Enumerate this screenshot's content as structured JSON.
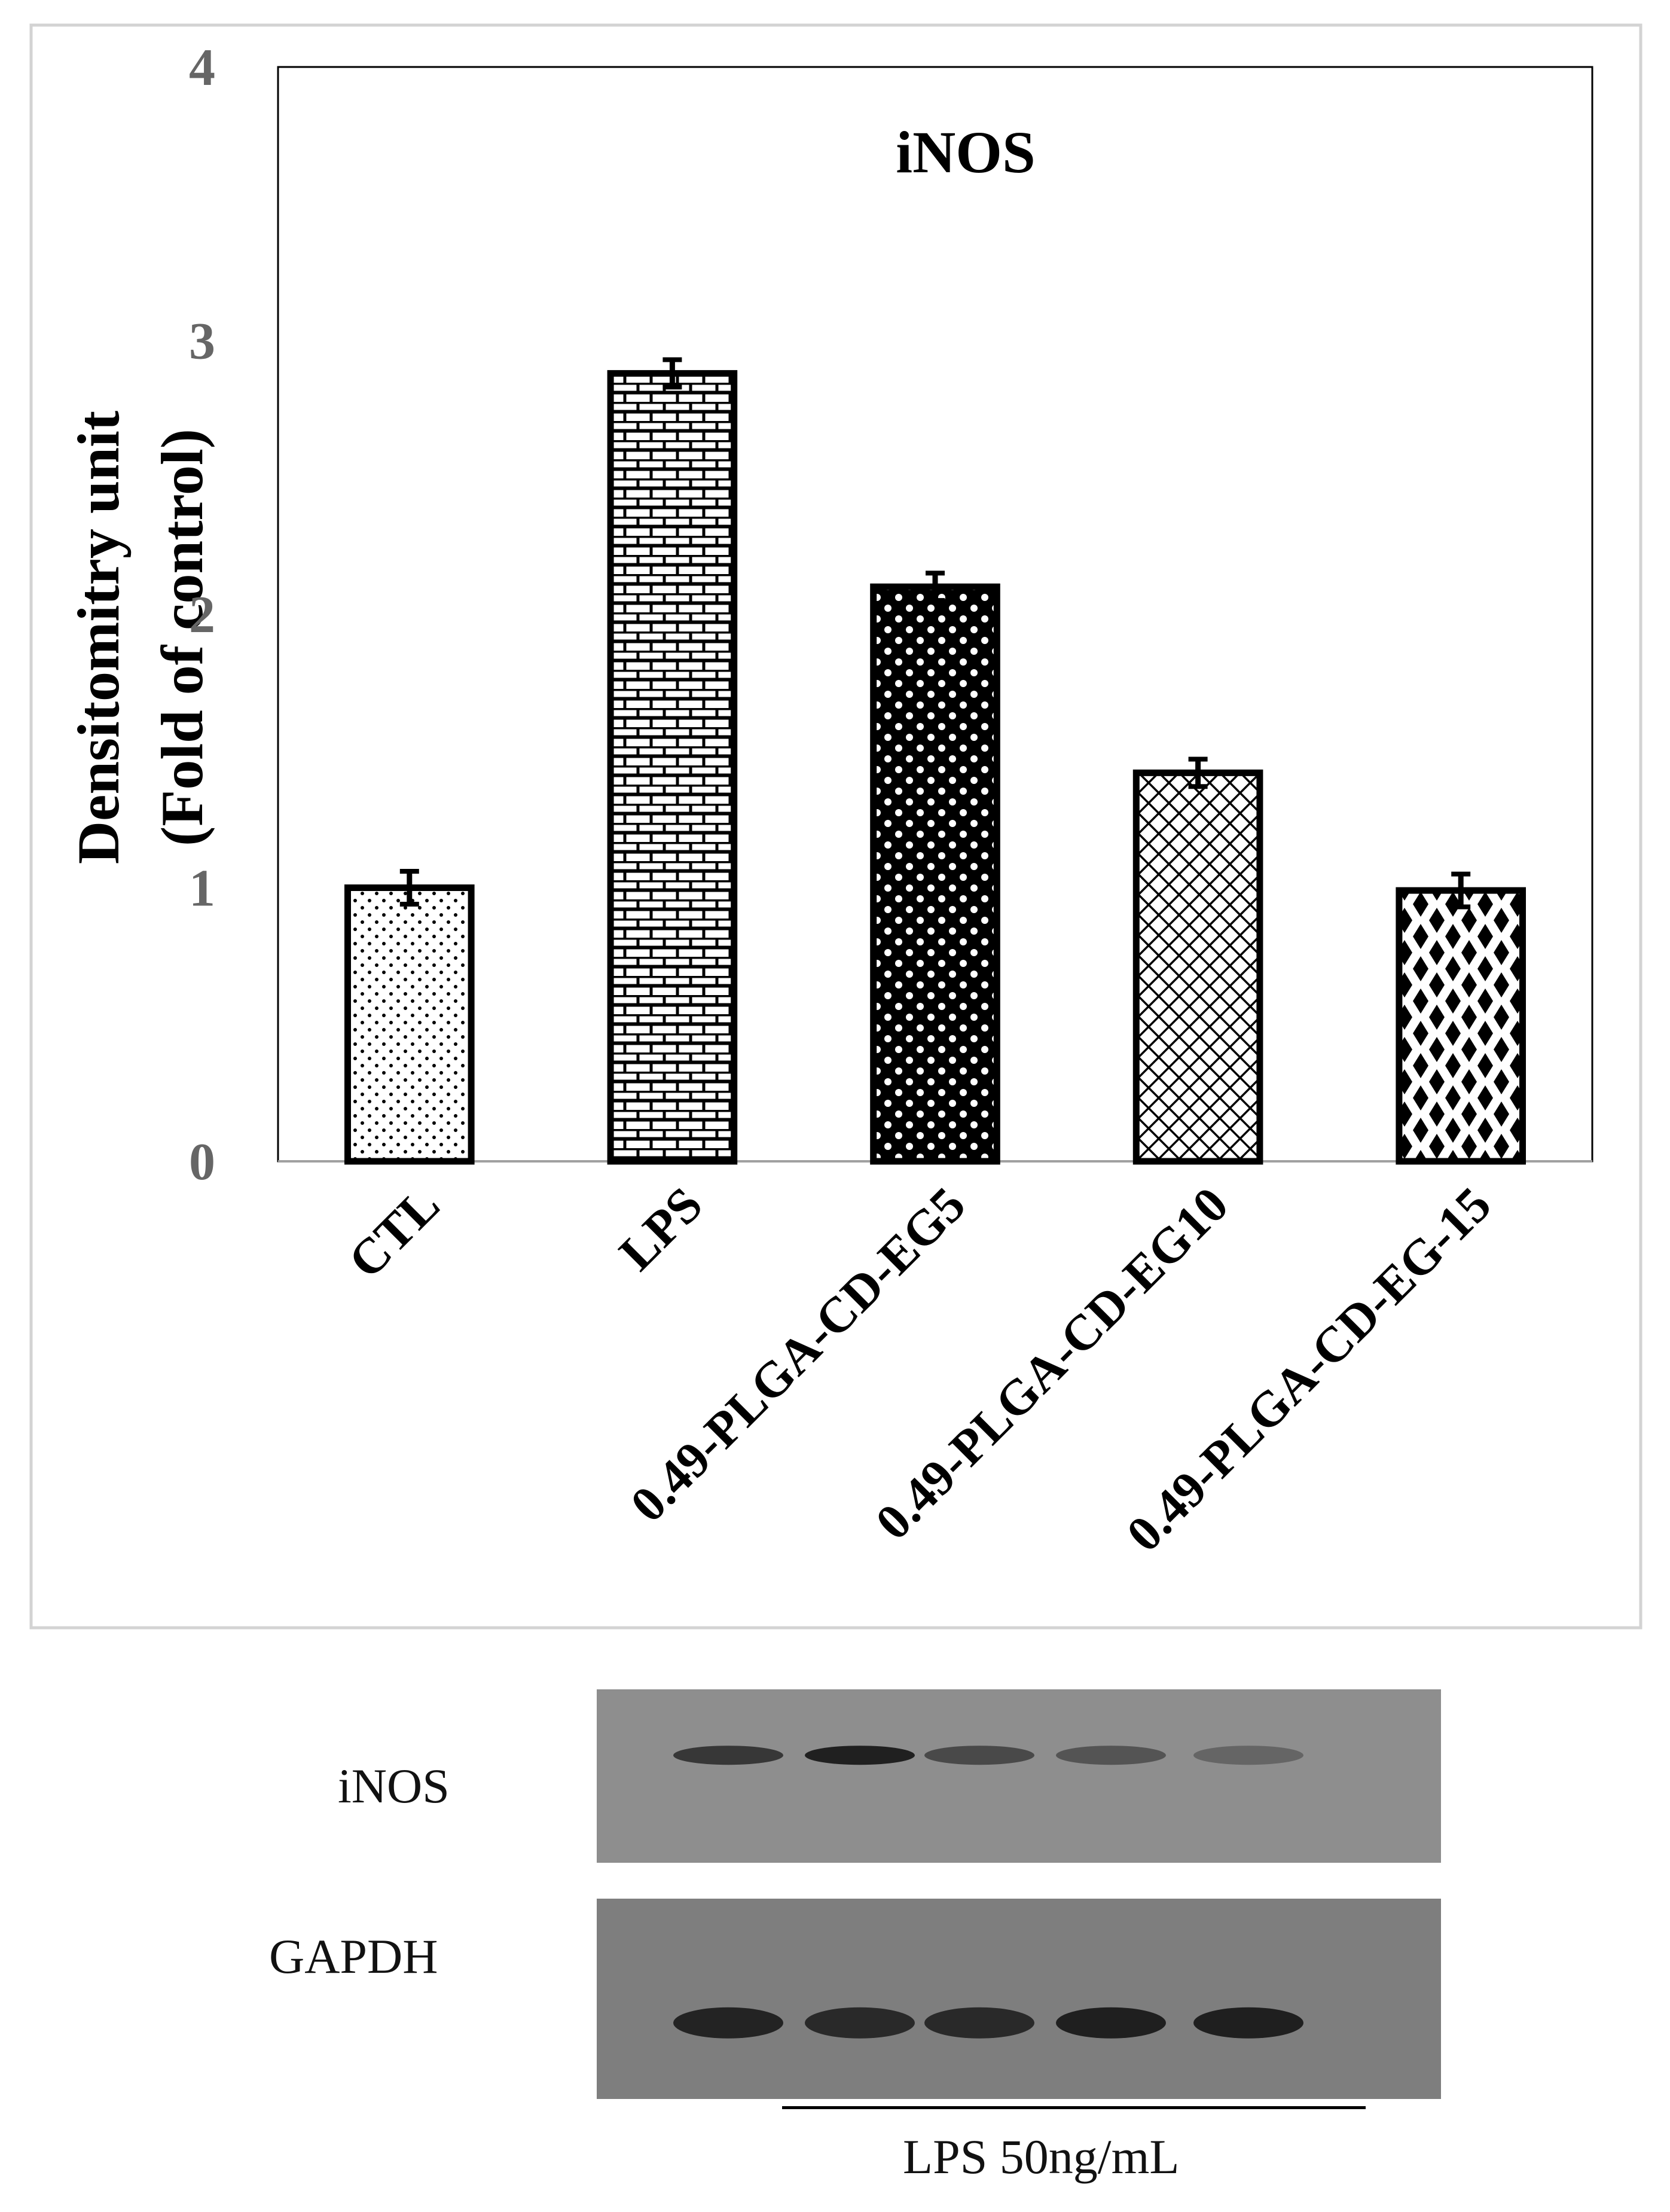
{
  "chart_data": {
    "type": "bar",
    "title": "iNOS",
    "ylabel_line1": "Densitomitry unit",
    "ylabel_line2": "(Fold of control)",
    "xlabel": "",
    "ylim": [
      0,
      4
    ],
    "yticks": [
      0,
      1,
      2,
      3,
      4
    ],
    "categories": [
      "CTL",
      "LPS",
      "0.49-PLGA-CD-EG5",
      "0.49-PLGA-CD-EG10",
      "0.49-PLGA-CD-EG-15"
    ],
    "values": [
      1.0,
      2.88,
      2.1,
      1.42,
      0.99
    ],
    "errors": [
      0.06,
      0.05,
      0.05,
      0.05,
      0.06
    ],
    "patterns": [
      "dots",
      "bricks",
      "circles",
      "lattice",
      "diamonds"
    ],
    "grid": false,
    "legend": "none"
  },
  "blot": {
    "rows": [
      {
        "label": "iNOS",
        "background": "#8e8e8e",
        "bands": [
          {
            "lane": 0,
            "intensity": 0.75
          },
          {
            "lane": 1,
            "intensity": 0.95
          },
          {
            "lane": 2,
            "intensity": 0.6
          },
          {
            "lane": 3,
            "intensity": 0.5
          },
          {
            "lane": 4,
            "intensity": 0.35
          }
        ]
      },
      {
        "label": "GAPDH",
        "background": "#7e7e7e",
        "bands": [
          {
            "lane": 0,
            "intensity": 0.9
          },
          {
            "lane": 1,
            "intensity": 0.85
          },
          {
            "lane": 2,
            "intensity": 0.85
          },
          {
            "lane": 3,
            "intensity": 0.95
          },
          {
            "lane": 4,
            "intensity": 0.95
          }
        ]
      }
    ],
    "treatment_label": "LPS 50ng/mL"
  }
}
